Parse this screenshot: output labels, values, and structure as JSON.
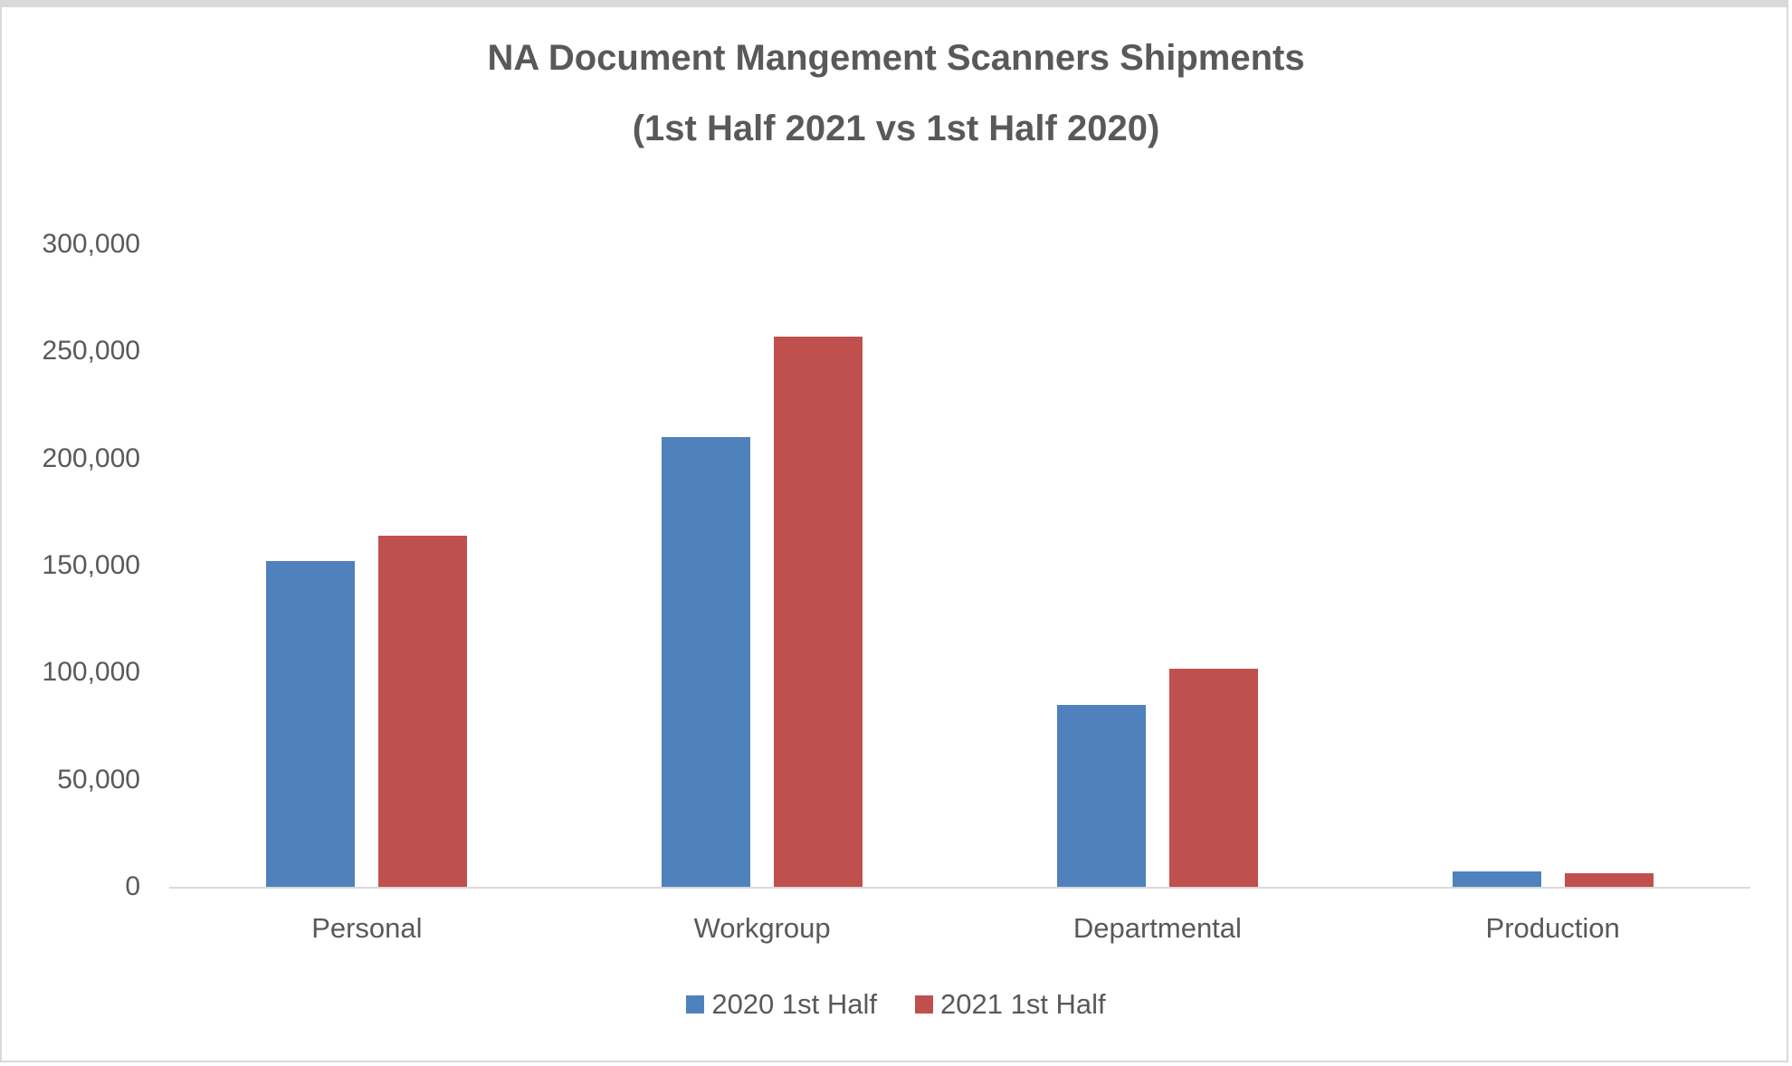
{
  "chart_data": {
    "type": "bar",
    "title": "NA Document Mangement Scanners Shipments",
    "subtitle": "(1st Half 2021 vs 1st Half 2020)",
    "categories": [
      "Personal",
      "Workgroup",
      "Departmental",
      "Production"
    ],
    "series": [
      {
        "name": "2020 1st Half",
        "color": "#4f81bd",
        "values": [
          152000,
          210000,
          85000,
          7000
        ]
      },
      {
        "name": "2021 1st Half",
        "color": "#c0504d",
        "values": [
          164000,
          257000,
          102000,
          6500
        ]
      }
    ],
    "xlabel": "",
    "ylabel": "",
    "ylim": [
      0,
      300000
    ],
    "yticks": [
      "0",
      "50,000",
      "100,000",
      "150,000",
      "200,000",
      "250,000",
      "300,000"
    ],
    "grid": false,
    "legend_position": "bottom"
  }
}
